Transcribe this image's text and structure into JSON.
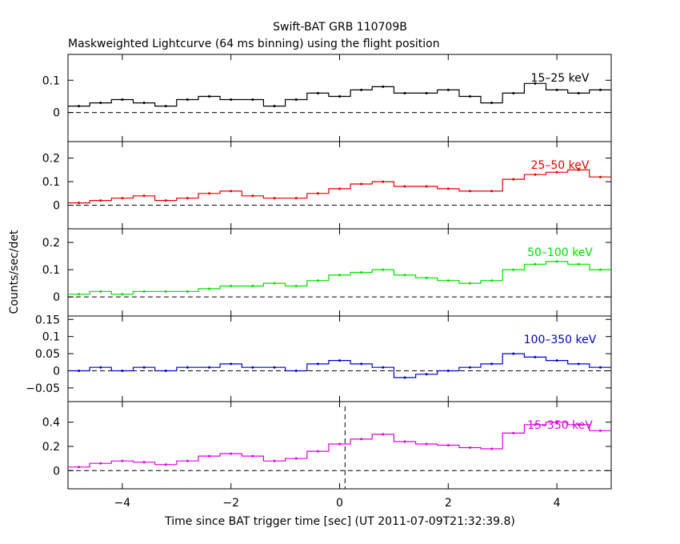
{
  "title": "Swift-BAT GRB 110709B",
  "subtitle": "Maskweighted Lightcurve (64 ms binning) using the flight position",
  "ylabel": "Counts/sec/det",
  "xlabel": "Time since BAT trigger time [sec] (UT 2011-07-09T21:32:39.8)",
  "chart_data": [
    {
      "type": "line",
      "name": "15-25 keV",
      "label": "15–25 keV",
      "color": "#000000",
      "xlim": [
        -5,
        5
      ],
      "ylim": [
        -0.09,
        0.18
      ],
      "yticks": [
        0,
        0.1
      ],
      "yticklabels": [
        "0",
        "0.1"
      ],
      "xticks": [
        -4,
        -2,
        0,
        2,
        4
      ],
      "xticklabels": [],
      "dashed_zero": true,
      "x": [
        -4.8,
        -4.4,
        -4.0,
        -3.6,
        -3.2,
        -2.8,
        -2.4,
        -2.0,
        -1.6,
        -1.2,
        -0.8,
        -0.4,
        0.0,
        0.4,
        0.8,
        1.2,
        1.6,
        2.0,
        2.4,
        2.8,
        3.2,
        3.6,
        4.0,
        4.4,
        4.8
      ],
      "y": [
        0.02,
        0.03,
        0.04,
        0.03,
        0.02,
        0.04,
        0.05,
        0.04,
        0.04,
        0.02,
        0.04,
        0.06,
        0.05,
        0.07,
        0.08,
        0.06,
        0.06,
        0.07,
        0.05,
        0.03,
        0.06,
        0.09,
        0.07,
        0.06,
        0.07
      ]
    },
    {
      "type": "line",
      "name": "25-50 keV",
      "label": "25–50 keV",
      "color": "#e00000",
      "xlim": [
        -5,
        5
      ],
      "ylim": [
        -0.1,
        0.27
      ],
      "yticks": [
        0,
        0.1,
        0.2
      ],
      "yticklabels": [
        "0",
        "0.1",
        "0.2"
      ],
      "xticks": [
        -4,
        -2,
        0,
        2,
        4
      ],
      "xticklabels": [],
      "dashed_zero": true,
      "x": [
        -4.8,
        -4.4,
        -4.0,
        -3.6,
        -3.2,
        -2.8,
        -2.4,
        -2.0,
        -1.6,
        -1.2,
        -0.8,
        -0.4,
        0.0,
        0.4,
        0.8,
        1.2,
        1.6,
        2.0,
        2.4,
        2.8,
        3.2,
        3.6,
        4.0,
        4.4,
        4.8
      ],
      "y": [
        0.01,
        0.02,
        0.03,
        0.04,
        0.02,
        0.03,
        0.05,
        0.06,
        0.04,
        0.03,
        0.03,
        0.05,
        0.07,
        0.09,
        0.1,
        0.08,
        0.08,
        0.07,
        0.06,
        0.06,
        0.11,
        0.13,
        0.14,
        0.15,
        0.12
      ]
    },
    {
      "type": "line",
      "name": "50-100 keV",
      "label": "50–100 keV",
      "color": "#00dd00",
      "xlim": [
        -5,
        5
      ],
      "ylim": [
        -0.07,
        0.25
      ],
      "yticks": [
        0,
        0.1,
        0.2
      ],
      "yticklabels": [
        "0",
        "0.1",
        "0.2"
      ],
      "xticks": [
        -4,
        -2,
        0,
        2,
        4
      ],
      "xticklabels": [],
      "dashed_zero": true,
      "x": [
        -4.8,
        -4.4,
        -4.0,
        -3.6,
        -3.2,
        -2.8,
        -2.4,
        -2.0,
        -1.6,
        -1.2,
        -0.8,
        -0.4,
        0.0,
        0.4,
        0.8,
        1.2,
        1.6,
        2.0,
        2.4,
        2.8,
        3.2,
        3.6,
        4.0,
        4.4,
        4.8
      ],
      "y": [
        0.01,
        0.02,
        0.01,
        0.02,
        0.02,
        0.02,
        0.03,
        0.04,
        0.04,
        0.05,
        0.04,
        0.06,
        0.08,
        0.09,
        0.1,
        0.08,
        0.07,
        0.06,
        0.05,
        0.06,
        0.1,
        0.12,
        0.13,
        0.12,
        0.1
      ]
    },
    {
      "type": "line",
      "name": "100-350 keV",
      "label": "100–350 keV",
      "color": "#0000cc",
      "xlim": [
        -5,
        5
      ],
      "ylim": [
        -0.09,
        0.16
      ],
      "yticks": [
        -0.05,
        0,
        0.05,
        0.1,
        0.15
      ],
      "yticklabels": [
        "−0.05",
        "0",
        "0.05",
        "0.1",
        "0.15"
      ],
      "xticks": [
        -4,
        -2,
        0,
        2,
        4
      ],
      "xticklabels": [],
      "dashed_zero": true,
      "x": [
        -4.8,
        -4.4,
        -4.0,
        -3.6,
        -3.2,
        -2.8,
        -2.4,
        -2.0,
        -1.6,
        -1.2,
        -0.8,
        -0.4,
        0.0,
        0.4,
        0.8,
        1.2,
        1.6,
        2.0,
        2.4,
        2.8,
        3.2,
        3.6,
        4.0,
        4.4,
        4.8
      ],
      "y": [
        0.0,
        0.01,
        0.0,
        0.01,
        0.0,
        0.01,
        0.01,
        0.02,
        0.01,
        0.01,
        0.0,
        0.02,
        0.03,
        0.02,
        0.01,
        -0.02,
        -0.01,
        0.0,
        0.01,
        0.02,
        0.05,
        0.04,
        0.03,
        0.02,
        0.01
      ]
    },
    {
      "type": "line",
      "name": "15-350 keV",
      "label": "15–350 keV",
      "color": "#dd00dd",
      "xlim": [
        -5,
        5
      ],
      "ylim": [
        -0.15,
        0.57
      ],
      "yticks": [
        0,
        0.2,
        0.4
      ],
      "yticklabels": [
        "0",
        "0.2",
        "0.4"
      ],
      "xticks": [
        -4,
        -2,
        0,
        2,
        4
      ],
      "xticklabels": [
        "−4",
        "−2",
        "0",
        "2",
        "4"
      ],
      "dashed_zero": true,
      "marker_line_x": 0.1,
      "x": [
        -4.8,
        -4.4,
        -4.0,
        -3.6,
        -3.2,
        -2.8,
        -2.4,
        -2.0,
        -1.6,
        -1.2,
        -0.8,
        -0.4,
        0.0,
        0.4,
        0.8,
        1.2,
        1.6,
        2.0,
        2.4,
        2.8,
        3.2,
        3.6,
        4.0,
        4.4,
        4.8
      ],
      "y": [
        0.03,
        0.06,
        0.08,
        0.07,
        0.05,
        0.08,
        0.12,
        0.14,
        0.12,
        0.08,
        0.1,
        0.16,
        0.22,
        0.26,
        0.3,
        0.24,
        0.22,
        0.21,
        0.19,
        0.18,
        0.31,
        0.38,
        0.4,
        0.38,
        0.33
      ]
    }
  ]
}
